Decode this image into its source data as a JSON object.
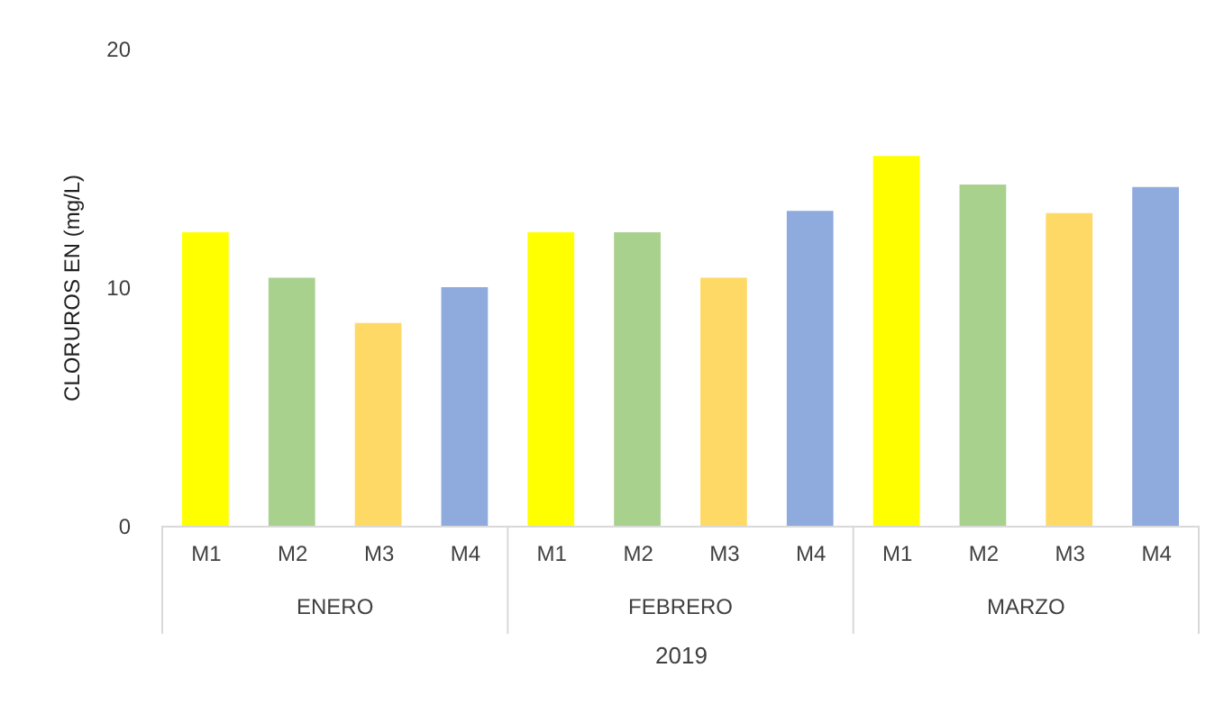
{
  "chart_data": {
    "type": "bar",
    "ylabel": "CLORUROS EN (mg/L)",
    "xlabel": "2019",
    "categories": [
      "M1",
      "M2",
      "M3",
      "M4",
      "M1",
      "M2",
      "M3",
      "M4",
      "M1",
      "M2",
      "M3",
      "M4"
    ],
    "values": [
      12.3,
      10.4,
      8.5,
      10.0,
      12.3,
      12.3,
      10.4,
      13.2,
      15.5,
      14.3,
      13.1,
      14.2
    ],
    "colors": [
      "#ffff00",
      "#a9d18e",
      "#ffd966",
      "#8faadc",
      "#ffff00",
      "#a9d18e",
      "#ffd966",
      "#8faadc",
      "#ffff00",
      "#a9d18e",
      "#ffd966",
      "#8faadc"
    ],
    "ylim": [
      0,
      20
    ],
    "yticks": [
      0,
      10,
      20
    ],
    "grid": false,
    "annotations": [
      "ENERO",
      "FEBRERO",
      "MARZO"
    ]
  }
}
